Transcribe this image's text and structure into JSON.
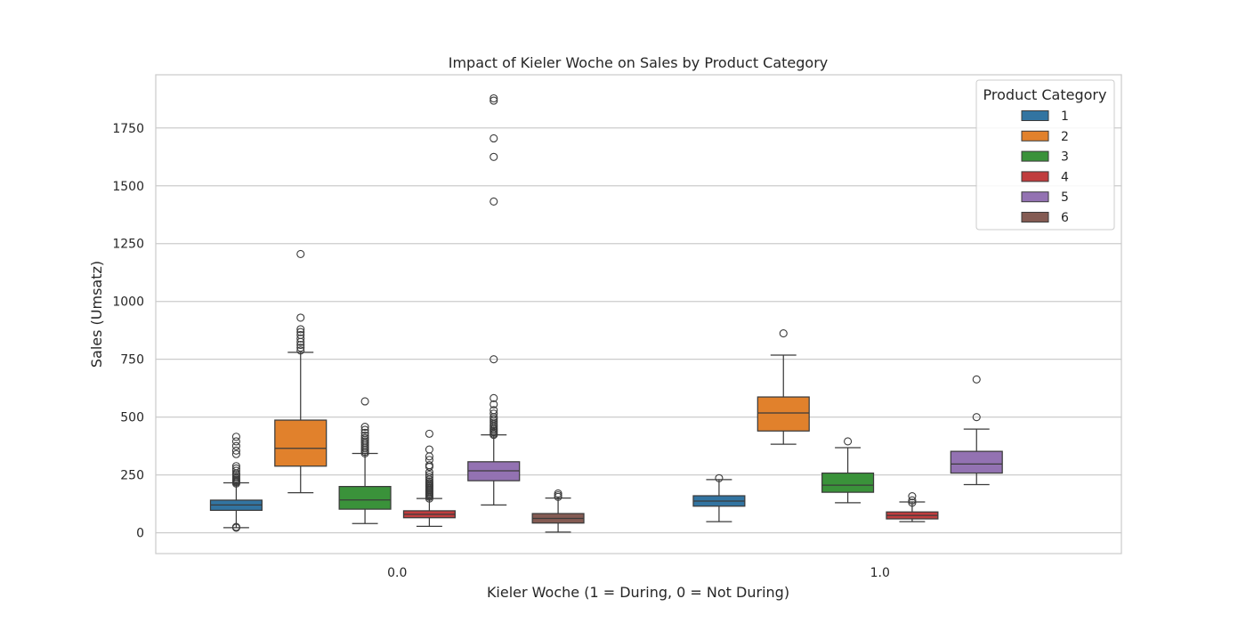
{
  "chart_data": {
    "type": "box",
    "title": "Impact of Kieler Woche on Sales by Product Category",
    "xlabel": "Kieler Woche (1 = During, 0 = Not During)",
    "ylabel": "Sales (Umsatz)",
    "categories": [
      "0.0",
      "1.0"
    ],
    "ylim": [
      -90,
      1980
    ],
    "yticks": [
      0,
      250,
      500,
      750,
      1000,
      1250,
      1500,
      1750
    ],
    "grid": "horizontal",
    "legend": {
      "title": "Product Category",
      "position": "top-right"
    },
    "series": [
      {
        "name": "1",
        "color": "#3274a1",
        "boxes": [
          {
            "x": "0.0",
            "whislo": 22,
            "q1": 97,
            "med": 120,
            "q3": 141,
            "whishi": 216,
            "fliers": [
              22,
              25,
              213,
              218,
              222,
              226,
              230,
              236,
              242,
              250,
              256,
              268,
              278,
              288,
              340,
              355,
              375,
              395,
              415
            ]
          },
          {
            "x": "1.0",
            "whislo": 48,
            "q1": 115,
            "med": 137,
            "q3": 160,
            "whishi": 230,
            "fliers": [
              236
            ]
          }
        ]
      },
      {
        "name": "2",
        "color": "#e1812c",
        "boxes": [
          {
            "x": "0.0",
            "whislo": 173,
            "q1": 288,
            "med": 365,
            "q3": 487,
            "whishi": 780,
            "fliers": [
              788,
              800,
              812,
              825,
              840,
              855,
              868,
              880,
              930,
              1205
            ]
          },
          {
            "x": "1.0",
            "whislo": 383,
            "q1": 440,
            "med": 518,
            "q3": 587,
            "whishi": 768,
            "fliers": [
              862
            ]
          }
        ]
      },
      {
        "name": "3",
        "color": "#3a923a",
        "boxes": [
          {
            "x": "0.0",
            "whislo": 40,
            "q1": 102,
            "med": 142,
            "q3": 200,
            "whishi": 343,
            "fliers": [
              343,
              350,
              358,
              365,
              372,
              380,
              388,
              395,
              402,
              410,
              420,
              432,
              445,
              458,
              568
            ]
          },
          {
            "x": "1.0",
            "whislo": 130,
            "q1": 175,
            "med": 206,
            "q3": 258,
            "whishi": 368,
            "fliers": [
              395
            ]
          }
        ]
      },
      {
        "name": "4",
        "color": "#c03d3e",
        "boxes": [
          {
            "x": "0.0",
            "whislo": 28,
            "q1": 65,
            "med": 80,
            "q3": 95,
            "whishi": 148,
            "fliers": [
              148,
              155,
              160,
              165,
              170,
              175,
              180,
              185,
              190,
              195,
              200,
              205,
              210,
              215,
              222,
              230,
              240,
              250,
              262,
              285,
              292,
              315,
              330,
              360,
              428
            ]
          },
          {
            "x": "1.0",
            "whislo": 48,
            "q1": 60,
            "med": 75,
            "q3": 90,
            "whishi": 133,
            "fliers": [
              130,
              140,
              158
            ]
          }
        ]
      },
      {
        "name": "5",
        "color": "#9372b2",
        "boxes": [
          {
            "x": "0.0",
            "whislo": 120,
            "q1": 225,
            "med": 268,
            "q3": 307,
            "whishi": 423,
            "fliers": [
              423,
              428,
              434,
              440,
              446,
              452,
              460,
              468,
              476,
              484,
              492,
              500,
              515,
              530,
              555,
              582,
              750,
              1432,
              1625,
              1705,
              1868,
              1878
            ]
          },
          {
            "x": "1.0",
            "whislo": 208,
            "q1": 258,
            "med": 297,
            "q3": 352,
            "whishi": 448,
            "fliers": [
              500,
              663
            ]
          }
        ]
      },
      {
        "name": "6",
        "color": "#845b53",
        "boxes": [
          {
            "x": "0.0",
            "whislo": 3,
            "q1": 42,
            "med": 62,
            "q3": 83,
            "whishi": 150,
            "fliers": [
              155,
              162,
              170
            ]
          },
          {
            "x": "1.0",
            "whislo": null,
            "q1": null,
            "med": null,
            "q3": null,
            "whishi": null,
            "fliers": []
          }
        ]
      }
    ]
  }
}
